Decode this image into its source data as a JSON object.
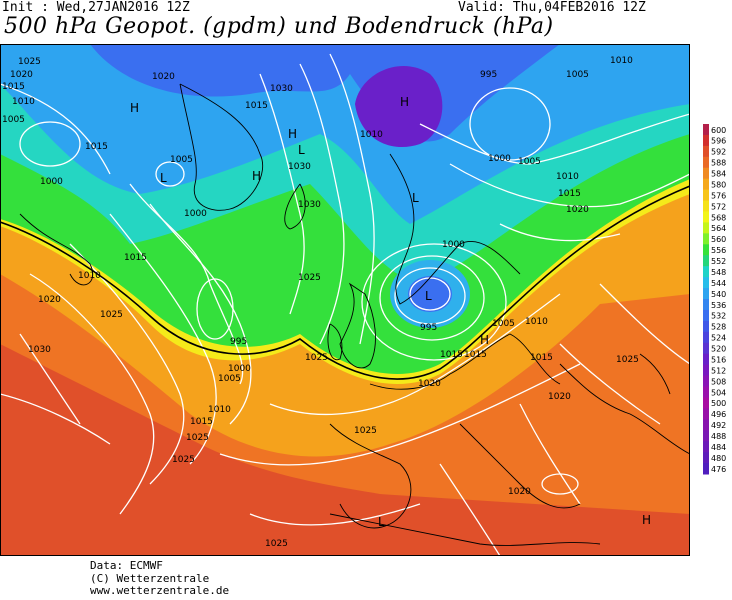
{
  "header": {
    "init": "Init : Wed,27JAN2016 12Z",
    "valid": "Valid: Thu,04FEB2016 12Z",
    "title": "500 hPa Geopot. (gpdm) und Bodendruck (hPa)"
  },
  "colors": {
    "purple": "#6a1fc9",
    "blue": "#3b6df0",
    "lightblue": "#2fb6f0",
    "cyan": "#1fd3c8",
    "green": "#36e23a",
    "yellow": "#f5f21a",
    "orange": "#f5a81c",
    "deeporange": "#f07a24",
    "red": "#e0502a"
  },
  "legend": {
    "levels": [
      "600",
      "596",
      "592",
      "588",
      "584",
      "580",
      "576",
      "572",
      "568",
      "564",
      "560",
      "556",
      "552",
      "548",
      "544",
      "540",
      "536",
      "532",
      "528",
      "524",
      "520",
      "516",
      "512",
      "508",
      "504",
      "500",
      "496",
      "492",
      "488",
      "484",
      "480",
      "476"
    ]
  },
  "labels": {
    "l1": "1025",
    "l2": "1020",
    "l3": "1015",
    "l4": "1010",
    "l5": "1005",
    "l6": "1020",
    "l7": "1030",
    "l8": "1015",
    "l9": "1005",
    "l10": "1000",
    "l11": "1000",
    "l12": "1015",
    "l13": "1030",
    "l14": "1030",
    "l15": "1025",
    "l16": "995",
    "l17": "1000",
    "l18": "1010",
    "l19": "1015",
    "l20": "1025",
    "l21": "1010",
    "l22": "1000",
    "l23": "1005",
    "l24": "1010",
    "l25": "1015",
    "l26": "1020",
    "l27": "995",
    "l28": "1000",
    "l29": "1005",
    "l30": "1010",
    "l31": "1015",
    "l32": "1025",
    "l33": "1020",
    "l34": "1025",
    "l35": "1020",
    "l36": "1025",
    "l37": "995",
    "l38": "1005",
    "l39": "1010",
    "l40": "1020",
    "l41": "1015",
    "l42": "1015",
    "l43": "1030",
    "l44": "1025",
    "l45": "1010",
    "l46": "1025",
    "l47": "1020",
    "l48": "1005",
    "l49": "1015",
    "l50": "1025"
  },
  "pressure_centers": {
    "h1": "H",
    "h2": "H",
    "h3": "H",
    "h4": "H",
    "h5": "H",
    "h6": "H",
    "t1": "L",
    "t2": "L",
    "t3": "L",
    "t4": "L",
    "t5": "L"
  },
  "footer": {
    "data": "Data: ECMWF",
    "copyright": "(C) Wetterzentrale",
    "url": "www.wetterzentrale.de"
  }
}
